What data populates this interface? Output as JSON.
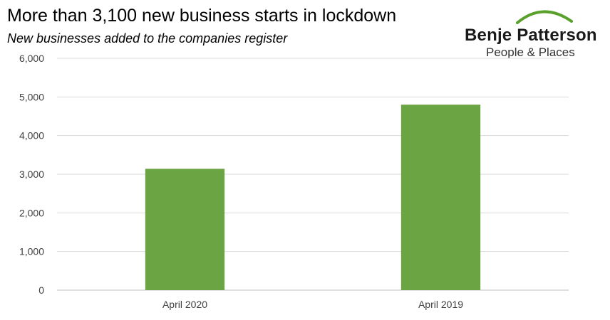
{
  "header": {
    "title": "More than 3,100 new business starts in lockdown",
    "subtitle": "New businesses added to the companies register"
  },
  "logo": {
    "name": "Benje Patterson",
    "tagline": "People & Places",
    "roof_color": "#5aa02c"
  },
  "chart_data": {
    "type": "bar",
    "categories": [
      "April 2020",
      "April 2019"
    ],
    "values": [
      3140,
      4800
    ],
    "ylim": [
      0,
      6000
    ],
    "yticks": [
      0,
      1000,
      2000,
      3000,
      4000,
      5000,
      6000
    ],
    "ytick_labels": [
      "0",
      "1,000",
      "2,000",
      "3,000",
      "4,000",
      "5,000",
      "6,000"
    ],
    "grid": true,
    "legend": "none",
    "bar_color": "#6aa443"
  }
}
